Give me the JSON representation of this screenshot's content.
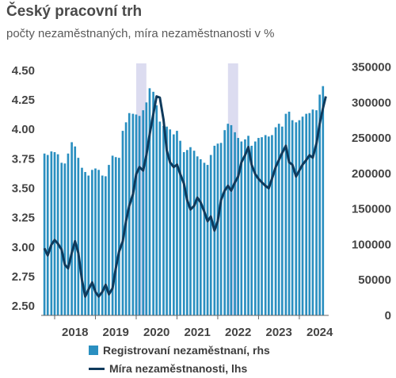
{
  "chart_data": {
    "type": "bar+line",
    "title": "Český pracovní trh",
    "subtitle": "počty nezaměstnaných, míra nezaměstnanosti v %",
    "x_tick_labels": [
      "2018",
      "2019",
      "2020",
      "2021",
      "2022",
      "2023",
      "2024"
    ],
    "y_left": {
      "ticks": [
        "2.50",
        "2.75",
        "3.00",
        "3.25",
        "3.50",
        "3.75",
        "4.00",
        "4.25",
        "4.50"
      ],
      "range": [
        2.42,
        4.56
      ]
    },
    "y_right": {
      "ticks": [
        "0",
        "50000",
        "100000",
        "150000",
        "200000",
        "250000",
        "300000",
        "350000"
      ],
      "range": [
        0,
        355000
      ]
    },
    "x_range": [
      2017.67,
      2024.72
    ],
    "shaded_periods": [
      [
        2020.0,
        2020.25
      ],
      [
        2022.25,
        2022.5
      ]
    ],
    "series": [
      {
        "name": "Registrovaní nezaměstnaní, rhs",
        "kind": "bar",
        "color": "#2a8fc0",
        "axis": "right",
        "x": [
          2017.75,
          2017.83,
          2017.92,
          2018.0,
          2018.08,
          2018.17,
          2018.25,
          2018.33,
          2018.42,
          2018.5,
          2018.58,
          2018.67,
          2018.75,
          2018.83,
          2018.92,
          2019.0,
          2019.08,
          2019.17,
          2019.25,
          2019.33,
          2019.42,
          2019.5,
          2019.58,
          2019.67,
          2019.75,
          2019.83,
          2019.92,
          2020.0,
          2020.08,
          2020.17,
          2020.25,
          2020.33,
          2020.42,
          2020.5,
          2020.58,
          2020.67,
          2020.75,
          2020.83,
          2020.92,
          2021.0,
          2021.08,
          2021.17,
          2021.25,
          2021.33,
          2021.42,
          2021.5,
          2021.58,
          2021.67,
          2021.75,
          2021.83,
          2021.92,
          2022.0,
          2022.08,
          2022.17,
          2022.25,
          2022.33,
          2022.42,
          2022.5,
          2022.58,
          2022.67,
          2022.75,
          2022.83,
          2022.92,
          2023.0,
          2023.08,
          2023.17,
          2023.25,
          2023.33,
          2023.42,
          2023.5,
          2023.58,
          2023.67,
          2023.75,
          2023.83,
          2023.92,
          2024.0,
          2024.08,
          2024.17,
          2024.25,
          2024.33,
          2024.42,
          2024.5,
          2024.58
        ],
        "values": [
          228000,
          226000,
          231000,
          230000,
          227000,
          215000,
          214000,
          228000,
          244000,
          238000,
          222000,
          208000,
          202000,
          197000,
          205000,
          207000,
          205000,
          197000,
          196000,
          212000,
          225000,
          223000,
          222000,
          260000,
          272000,
          285000,
          284000,
          283000,
          281000,
          289000,
          300000,
          320000,
          315000,
          296000,
          273000,
          267000,
          266000,
          262000,
          255000,
          260000,
          246000,
          230000,
          233000,
          237000,
          232000,
          224000,
          220000,
          215000,
          212000,
          226000,
          239000,
          242000,
          243000,
          261000,
          270000,
          268000,
          258000,
          250000,
          245000,
          248000,
          253000,
          239000,
          245000,
          250000,
          251000,
          254000,
          252000,
          254000,
          265000,
          270000,
          266000,
          284000,
          287000,
          275000,
          272000,
          275000,
          280000,
          284000,
          285000,
          290000,
          289000,
          311000,
          323000
        ]
      },
      {
        "name": "Míra nezaměstnanosti, lhs",
        "kind": "line",
        "color": "#0f3a5c",
        "axis": "left",
        "x": [
          2017.75,
          2017.83,
          2017.92,
          2018.0,
          2018.08,
          2018.17,
          2018.25,
          2018.33,
          2018.42,
          2018.5,
          2018.58,
          2018.67,
          2018.75,
          2018.83,
          2018.92,
          2019.0,
          2019.08,
          2019.17,
          2019.25,
          2019.33,
          2019.42,
          2019.5,
          2019.58,
          2019.67,
          2019.75,
          2019.83,
          2019.92,
          2020.0,
          2020.08,
          2020.17,
          2020.25,
          2020.33,
          2020.42,
          2020.5,
          2020.58,
          2020.67,
          2020.75,
          2020.83,
          2020.92,
          2021.0,
          2021.08,
          2021.17,
          2021.25,
          2021.33,
          2021.42,
          2021.5,
          2021.58,
          2021.67,
          2021.75,
          2021.83,
          2021.92,
          2022.0,
          2022.08,
          2022.17,
          2022.25,
          2022.33,
          2022.42,
          2022.5,
          2022.58,
          2022.67,
          2022.75,
          2022.83,
          2022.92,
          2023.0,
          2023.08,
          2023.17,
          2023.25,
          2023.33,
          2023.42,
          2023.5,
          2023.58,
          2023.67,
          2023.75,
          2023.83,
          2023.92,
          2024.0,
          2024.08,
          2024.17,
          2024.25,
          2024.33,
          2024.42,
          2024.5,
          2024.58,
          2024.65
        ],
        "values": [
          2.99,
          2.93,
          3.02,
          3.06,
          3.03,
          2.98,
          2.85,
          2.82,
          2.95,
          3.05,
          2.95,
          2.72,
          2.58,
          2.64,
          2.7,
          2.62,
          2.58,
          2.62,
          2.68,
          2.6,
          2.65,
          2.82,
          2.96,
          3.05,
          3.22,
          3.35,
          3.45,
          3.62,
          3.68,
          3.65,
          3.78,
          3.96,
          4.13,
          4.28,
          4.27,
          4.08,
          3.82,
          3.72,
          3.68,
          3.7,
          3.62,
          3.54,
          3.4,
          3.32,
          3.35,
          3.42,
          3.38,
          3.3,
          3.22,
          3.26,
          3.14,
          3.22,
          3.4,
          3.48,
          3.52,
          3.48,
          3.55,
          3.6,
          3.72,
          3.78,
          3.85,
          3.7,
          3.62,
          3.58,
          3.55,
          3.52,
          3.5,
          3.58,
          3.68,
          3.74,
          3.8,
          3.86,
          3.72,
          3.7,
          3.6,
          3.65,
          3.7,
          3.74,
          3.78,
          3.76,
          3.88,
          4.05,
          4.18,
          4.28
        ]
      }
    ],
    "grid": false,
    "legend_position": "bottom"
  }
}
